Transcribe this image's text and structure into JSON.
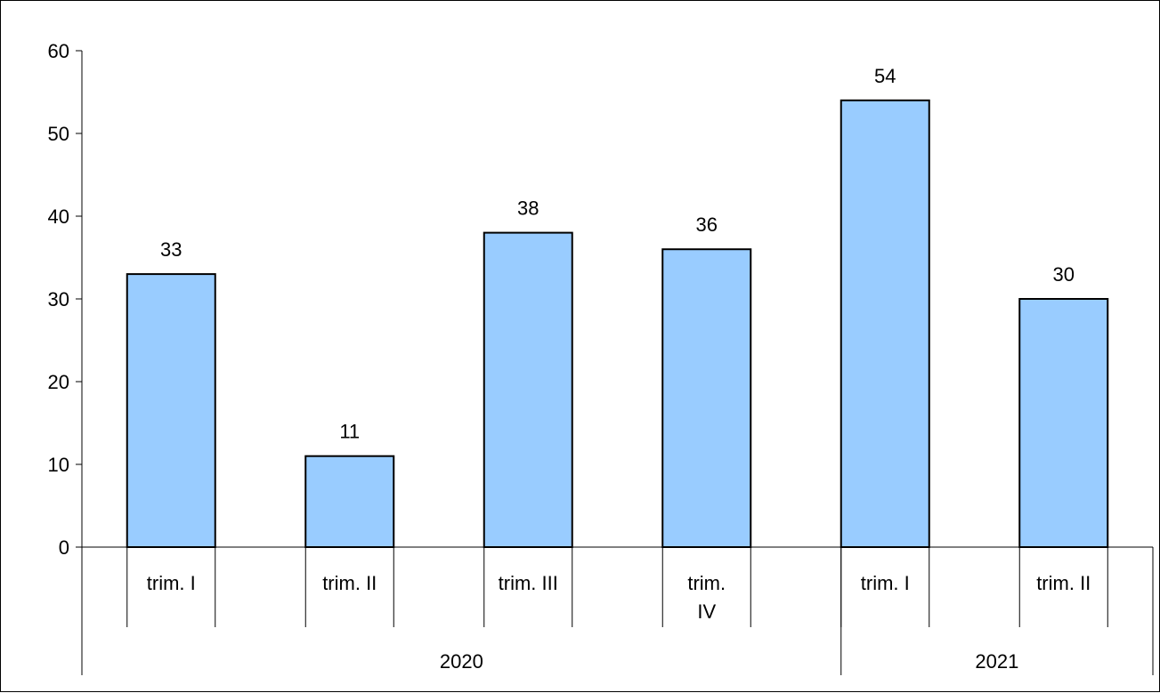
{
  "chart_data": {
    "type": "bar",
    "categories": [
      "trim. I",
      "trim. II",
      "trim. III",
      "trim. IV",
      "trim. I",
      "trim. II"
    ],
    "groups": [
      {
        "label": "2020",
        "span": 4
      },
      {
        "label": "2021",
        "span": 2
      }
    ],
    "values": [
      33,
      11,
      38,
      36,
      54,
      30
    ],
    "data_labels": [
      "33",
      "11",
      "38",
      "36",
      "54",
      "30"
    ],
    "title": "",
    "xlabel": "",
    "ylabel": "",
    "ylim": [
      0,
      60
    ],
    "yticks": [
      0,
      10,
      20,
      30,
      40,
      50,
      60
    ],
    "ytick_labels": [
      "0",
      "10",
      "20",
      "30",
      "40",
      "50",
      "60"
    ],
    "grid": false,
    "legend": "none",
    "bar_color": "#99CCFF",
    "bar_edge_color": "#000000"
  }
}
